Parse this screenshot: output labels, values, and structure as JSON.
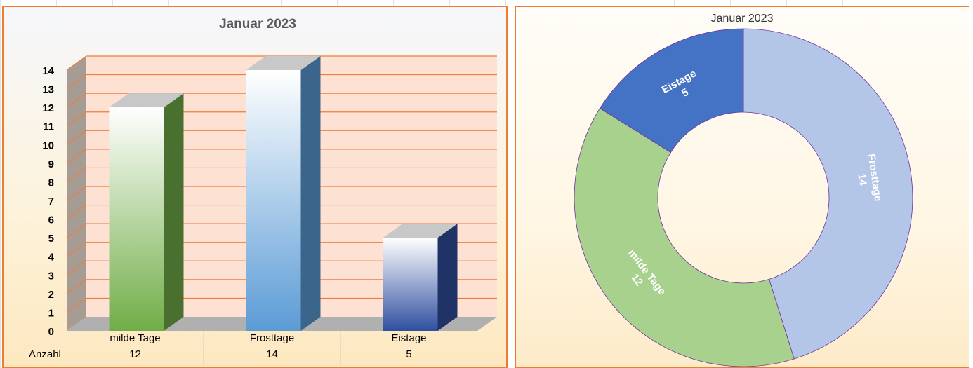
{
  "chart_data": [
    {
      "type": "bar",
      "style": "3d-column",
      "title": "Januar 2023",
      "categories": [
        "milde Tage",
        "Frosttage",
        "Eistage"
      ],
      "series": [
        {
          "name": "Anzahl",
          "values": [
            12,
            14,
            5
          ]
        }
      ],
      "ylim": [
        0,
        14
      ],
      "yticks": [
        0,
        1,
        2,
        3,
        4,
        5,
        6,
        7,
        8,
        9,
        10,
        11,
        12,
        13,
        14
      ],
      "grid": true,
      "data_table": true,
      "colors": {
        "milde Tage": "#70ad47",
        "Frosttage": "#5b9bd5",
        "Eistage": "#2f4f9f",
        "plot_area": "#fde2d4",
        "gridline": "#f07c3c",
        "border": "#ed7d31"
      }
    },
    {
      "type": "pie",
      "style": "doughnut",
      "title": "Januar 2023",
      "categories": [
        "Frosttage",
        "milde Tage",
        "Eistage"
      ],
      "values": [
        14,
        12,
        5
      ],
      "colors": [
        "#b4c6e7",
        "#a9d18e",
        "#4472c4"
      ],
      "data_labels": true
    }
  ]
}
